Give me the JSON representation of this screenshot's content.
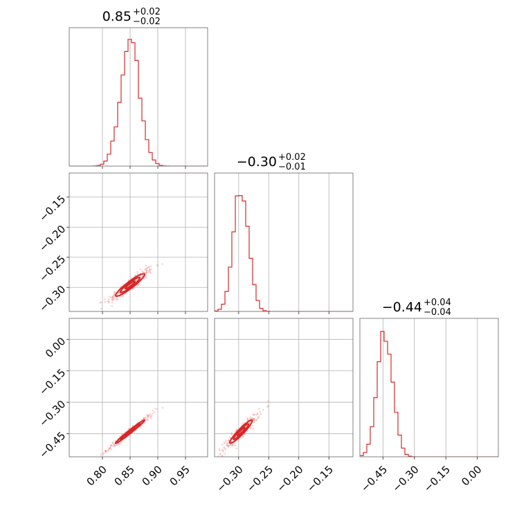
{
  "chart_data": {
    "type": "corner",
    "color": "#d62728",
    "parameters": [
      {
        "id": "p0",
        "title": {
          "median": "0.85",
          "plus": "+0.02",
          "minus": "−0.02"
        },
        "range": [
          0.74,
          0.99
        ],
        "ticks": [
          0.8,
          0.85,
          0.9,
          0.95
        ],
        "tick_labels": [
          "0.80",
          "0.85",
          "0.90",
          "0.95"
        ],
        "mean": 0.85,
        "sigma": 0.0175,
        "hist_peak_fraction": 0.9
      },
      {
        "id": "p1",
        "title": {
          "median": "−0.30",
          "plus": "+0.02",
          "minus": "−0.01"
        },
        "range": [
          -0.34,
          -0.11
        ],
        "ticks": [
          -0.3,
          -0.25,
          -0.2,
          -0.15
        ],
        "tick_labels": [
          "−0.30",
          "−0.25",
          "−0.20",
          "−0.15"
        ],
        "mean": -0.296,
        "sigma": 0.0125,
        "hist_peak_fraction": 0.9
      },
      {
        "id": "p2",
        "title": {
          "median": "−0.44",
          "plus": "+0.04",
          "minus": "−0.04"
        },
        "range": [
          -0.56,
          0.1
        ],
        "ticks": [
          -0.45,
          -0.3,
          -0.15,
          0.0
        ],
        "tick_labels": [
          "−0.45",
          "−0.30",
          "−0.15",
          "0.00"
        ],
        "mean": -0.44,
        "sigma": 0.037,
        "hist_peak_fraction": 0.9
      }
    ],
    "pairs": [
      {
        "x": 0,
        "y": 1,
        "correlation": 0.93
      },
      {
        "x": 0,
        "y": 2,
        "correlation": 0.985
      },
      {
        "x": 1,
        "y": 2,
        "correlation": 0.94
      }
    ],
    "contour_levels_sigma": [
      0.5,
      1.0,
      1.5
    ],
    "grid": true
  }
}
